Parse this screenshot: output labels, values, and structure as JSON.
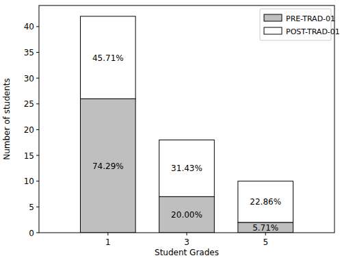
{
  "chart_data": {
    "type": "bar",
    "stacked": true,
    "x_label": "Student Grades",
    "y_label": "Number of students",
    "categories": [
      "1",
      "3",
      "5"
    ],
    "series": [
      {
        "name": "PRE-TRAD-01",
        "color": "#bfbfbf",
        "values": [
          26,
          7,
          2
        ],
        "annotations": [
          "74.29%",
          "20.00%",
          "5.71%"
        ]
      },
      {
        "name": "POST-TRAD-01",
        "color": "#ffffff",
        "values": [
          16,
          11,
          8
        ],
        "annotations": [
          "45.71%",
          "31.43%",
          "22.86%"
        ]
      }
    ],
    "ylim": [
      0,
      44.1
    ],
    "yticks": [
      0,
      5,
      10,
      15,
      20,
      25,
      30,
      35,
      40
    ],
    "legend": "upper right",
    "grid": false
  }
}
